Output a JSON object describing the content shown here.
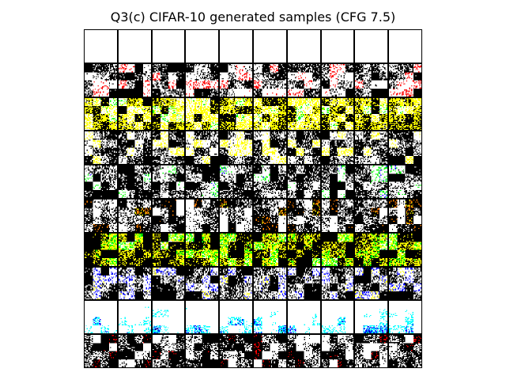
{
  "figure": {
    "title": "Q3(c) CIFAR-10 generated samples (CFG 7.5)"
  },
  "sample_grid": {
    "rows": 10,
    "cols": 10,
    "pixels_per_sample": 32,
    "palette": [
      "#ffffff",
      "#000000",
      "#ffff00",
      "#00ffff",
      "#ff0000",
      "#0000ff",
      "#00ff00",
      "#ff00ff",
      "#ff8000"
    ],
    "row_profiles": [
      {
        "row": 1,
        "style": "mostly-white",
        "dominant": [
          "#ffffff",
          "#000000",
          "#00ffff"
        ]
      },
      {
        "row": 2,
        "style": "black-red-speckle",
        "dominant": [
          "#000000",
          "#ffffff",
          "#ff0000"
        ]
      },
      {
        "row": 3,
        "style": "yellow-black-green",
        "dominant": [
          "#000000",
          "#ffff00",
          "#ffffff",
          "#00ff00"
        ]
      },
      {
        "row": 4,
        "style": "black-yellow",
        "dominant": [
          "#000000",
          "#ffffff",
          "#ffff00"
        ]
      },
      {
        "row": 5,
        "style": "black-blue-green",
        "dominant": [
          "#000000",
          "#ffffff",
          "#00ff00",
          "#0000ff"
        ]
      },
      {
        "row": 6,
        "style": "white-black-orange",
        "dominant": [
          "#ffffff",
          "#000000",
          "#ff8000",
          "#ffff00"
        ]
      },
      {
        "row": 7,
        "style": "black-yellow-green",
        "dominant": [
          "#000000",
          "#ffff00",
          "#00ff00",
          "#ffffff"
        ]
      },
      {
        "row": 8,
        "style": "black-blue-yellow",
        "dominant": [
          "#000000",
          "#ffffff",
          "#0000ff",
          "#ffff00"
        ]
      },
      {
        "row": 9,
        "style": "white-sky-blue-bottom",
        "dominant": [
          "#ffffff",
          "#00ffff",
          "#0000ff",
          "#000000"
        ]
      },
      {
        "row": 10,
        "style": "white-black-red",
        "dominant": [
          "#ffffff",
          "#000000",
          "#ff0000"
        ]
      }
    ]
  }
}
